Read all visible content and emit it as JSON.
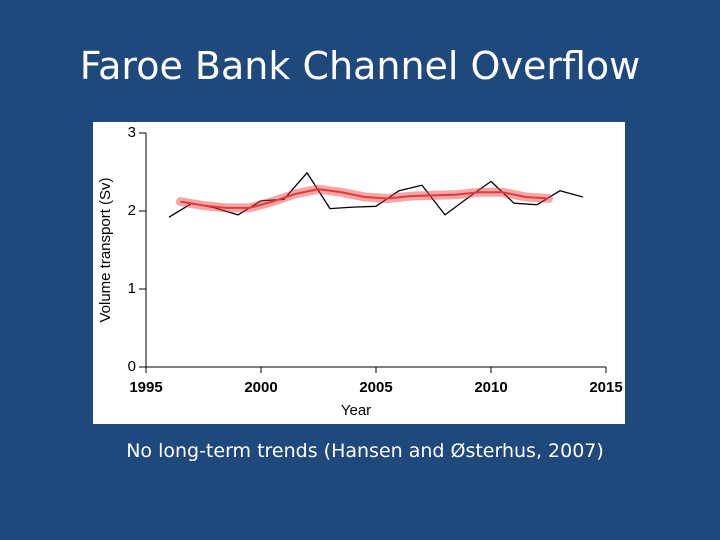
{
  "title": "Faroe Bank Channel Overflow",
  "caption": "No long-term trends (Hansen and Østerhus, 2007)",
  "chart_data": {
    "type": "line",
    "x_label": "Year",
    "y_label": "Volume transport (Sv)",
    "xlim": [
      1995,
      2015
    ],
    "xticks": [
      1995,
      2000,
      2005,
      2010,
      2015
    ],
    "ylim": [
      0,
      3
    ],
    "yticks": [
      0,
      1,
      2,
      3
    ],
    "series": [
      {
        "color": "#000000",
        "x": [
          1996,
          1997,
          1998,
          1999,
          2000,
          2001,
          2002,
          2003,
          2004,
          2005,
          2006,
          2007,
          2008,
          2009,
          2010,
          2011,
          2012,
          2013,
          2014
        ],
        "values": [
          1.92,
          2.1,
          2.04,
          1.95,
          2.13,
          2.15,
          2.49,
          2.03,
          2.05,
          2.06,
          2.26,
          2.33,
          1.95,
          2.17,
          2.38,
          2.1,
          2.08,
          2.26,
          2.18
        ]
      },
      {
        "color": "#e8393a",
        "x": [
          1996.5,
          1997.5,
          1998.5,
          1999.5,
          2000.5,
          2001.5,
          2002.5,
          2003.5,
          2004.5,
          2005.5,
          2006.5,
          2007.5,
          2008.5,
          2009.5,
          2010.5,
          2011.5,
          2012.5
        ],
        "values": [
          2.12,
          2.07,
          2.04,
          2.04,
          2.12,
          2.22,
          2.28,
          2.24,
          2.18,
          2.16,
          2.19,
          2.2,
          2.21,
          2.24,
          2.24,
          2.18,
          2.16
        ]
      }
    ]
  }
}
